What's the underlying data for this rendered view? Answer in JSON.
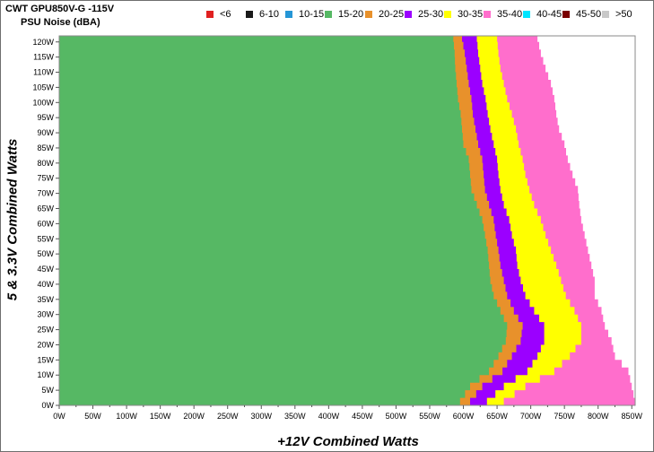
{
  "chart_data": {
    "type": "heatmap",
    "title": "CWT GPU850V-G -115V",
    "subtitle": "PSU Noise (dBA)",
    "xlabel": "+12V Combined Watts",
    "ylabel": "5 & 3.3V Combined Watts",
    "x_ticks": [
      "0W",
      "50W",
      "100W",
      "150W",
      "200W",
      "250W",
      "300W",
      "350W",
      "400W",
      "450W",
      "500W",
      "550W",
      "600W",
      "650W",
      "700W",
      "750W",
      "800W",
      "850W"
    ],
    "y_ticks": [
      "0W",
      "5W",
      "10W",
      "15W",
      "20W",
      "25W",
      "30W",
      "35W",
      "40W",
      "45W",
      "50W",
      "55W",
      "60W",
      "65W",
      "70W",
      "75W",
      "80W",
      "85W",
      "90W",
      "95W",
      "100W",
      "105W",
      "110W",
      "115W",
      "120W"
    ],
    "xlim": [
      0,
      855
    ],
    "ylim": [
      0,
      122
    ],
    "legend": {
      "position": "top",
      "entries": [
        {
          "label": "<6",
          "color": "#e02020"
        },
        {
          "label": "6-10",
          "color": "#1a1a1a"
        },
        {
          "label": "10-15",
          "color": "#2596d6"
        },
        {
          "label": "15-20",
          "color": "#56b864"
        },
        {
          "label": "20-25",
          "color": "#e8912b"
        },
        {
          "label": "25-30",
          "color": "#9b00ff"
        },
        {
          "label": "30-35",
          "color": "#ffff00"
        },
        {
          "label": "35-40",
          "color": "#ff6ecc"
        },
        {
          "label": "40-45",
          "color": "#00e5ff"
        },
        {
          "label": "45-50",
          "color": "#7a0000"
        },
        {
          "label": ">50",
          "color": "#c8c8c8"
        }
      ]
    },
    "boundaries": {
      "note": "upper +12V wattage of each noise band, per 5&3.3V load",
      "y": [
        0,
        5,
        10,
        15,
        20,
        25,
        30,
        35,
        40,
        45,
        50,
        55,
        60,
        65,
        70,
        75,
        80,
        85,
        90,
        95,
        100,
        105,
        110,
        115,
        120
      ],
      "15-20": [
        595,
        610,
        638,
        652,
        663,
        665,
        655,
        645,
        640,
        638,
        636,
        632,
        628,
        620,
        612,
        610,
        608,
        600,
        598,
        596,
        592,
        590,
        588,
        587,
        585
      ],
      "20-25": [
        610,
        628,
        658,
        672,
        685,
        688,
        675,
        665,
        660,
        655,
        652,
        648,
        645,
        638,
        632,
        630,
        628,
        622,
        618,
        614,
        612,
        608,
        605,
        602,
        598
      ],
      "25-30": [
        635,
        660,
        695,
        710,
        720,
        720,
        705,
        692,
        685,
        680,
        678,
        672,
        668,
        660,
        655,
        652,
        650,
        645,
        640,
        636,
        633,
        628,
        625,
        622,
        620
      ],
      "30-35": [
        660,
        692,
        735,
        758,
        775,
        775,
        765,
        752,
        745,
        738,
        730,
        722,
        715,
        705,
        698,
        692,
        688,
        682,
        678,
        672,
        665,
        660,
        655,
        652,
        650
      ],
      "35-40": [
        855,
        850,
        845,
        825,
        820,
        810,
        805,
        795,
        795,
        790,
        785,
        780,
        775,
        772,
        770,
        762,
        755,
        750,
        742,
        738,
        735,
        730,
        722,
        715,
        710
      ]
    }
  }
}
